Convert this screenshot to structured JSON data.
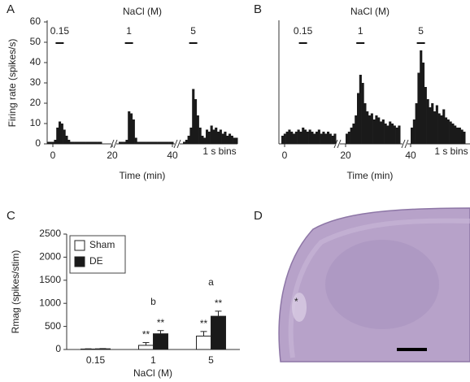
{
  "panel_labels": [
    "A",
    "B",
    "C",
    "D"
  ],
  "chart_data": [
    {
      "type": "psth",
      "title": "NaCl (M)",
      "y_label": "Firing rate (spikes/s)",
      "x_label": "Time (min)",
      "annotation": "1 s bins",
      "color": "#1a1a1a",
      "ylim": [
        0,
        60
      ],
      "yticks": [
        0,
        10,
        20,
        30,
        40,
        50,
        60
      ],
      "xticks": [
        0,
        20,
        40
      ],
      "segments": [
        {
          "label": "0.15",
          "values": [
            1,
            1,
            1,
            2,
            8,
            11,
            10,
            7,
            4,
            2,
            1,
            1,
            1,
            1,
            1,
            1,
            1,
            1,
            1,
            1,
            1,
            1,
            1,
            1
          ]
        },
        {
          "label": "1",
          "values": [
            1,
            1,
            1,
            2,
            16,
            15,
            12,
            3,
            1,
            1,
            1,
            1,
            1,
            1,
            1,
            1,
            1,
            1,
            1,
            1,
            1,
            1,
            1,
            1
          ]
        },
        {
          "label": "5",
          "values": [
            1,
            2,
            4,
            8,
            27,
            22,
            14,
            8,
            4,
            3,
            7,
            6,
            9,
            7,
            8,
            6,
            7,
            5,
            6,
            4,
            5,
            4,
            3,
            3
          ]
        }
      ]
    },
    {
      "type": "psth",
      "title": "NaCl (M)",
      "x_label": "Time (min)",
      "annotation": "1 s bins",
      "color": "#1a1a1a",
      "ylim": [
        0,
        60
      ],
      "xticks": [
        0,
        20,
        40
      ],
      "segments": [
        {
          "label": "0.15",
          "values": [
            4,
            5,
            6,
            7,
            6,
            5,
            6,
            7,
            6,
            8,
            7,
            6,
            7,
            6,
            5,
            6,
            7,
            5,
            6,
            5,
            6,
            5,
            4,
            5
          ]
        },
        {
          "label": "1",
          "values": [
            5,
            6,
            8,
            10,
            14,
            25,
            34,
            30,
            20,
            16,
            14,
            15,
            12,
            14,
            13,
            11,
            12,
            10,
            9,
            11,
            10,
            9,
            8,
            9
          ]
        },
        {
          "label": "5",
          "values": [
            8,
            12,
            20,
            35,
            46,
            40,
            28,
            22,
            18,
            20,
            16,
            19,
            15,
            14,
            17,
            13,
            12,
            11,
            10,
            9,
            8,
            8,
            7,
            6
          ]
        }
      ]
    },
    {
      "type": "bar",
      "y_label": "Rmag (spikes/stim)",
      "x_label": "NaCl (M)",
      "categories": [
        "0.15",
        "1",
        "5"
      ],
      "ylim": [
        0,
        2500
      ],
      "yticks": [
        0,
        500,
        1000,
        1500,
        2000,
        2500
      ],
      "series": [
        {
          "name": "Sham",
          "color": "#ffffff",
          "values": [
            10,
            90,
            290
          ],
          "errors": [
            5,
            60,
            100
          ],
          "marks": [
            null,
            "**",
            "**"
          ]
        },
        {
          "name": "DE",
          "color": "#1a1a1a",
          "values": [
            15,
            340,
            720
          ],
          "errors": [
            5,
            70,
            110
          ],
          "marks": [
            null,
            "**",
            "**"
          ]
        }
      ],
      "group_marks": [
        null,
        "b",
        "a"
      ]
    }
  ],
  "image": {
    "annotation": "*"
  }
}
